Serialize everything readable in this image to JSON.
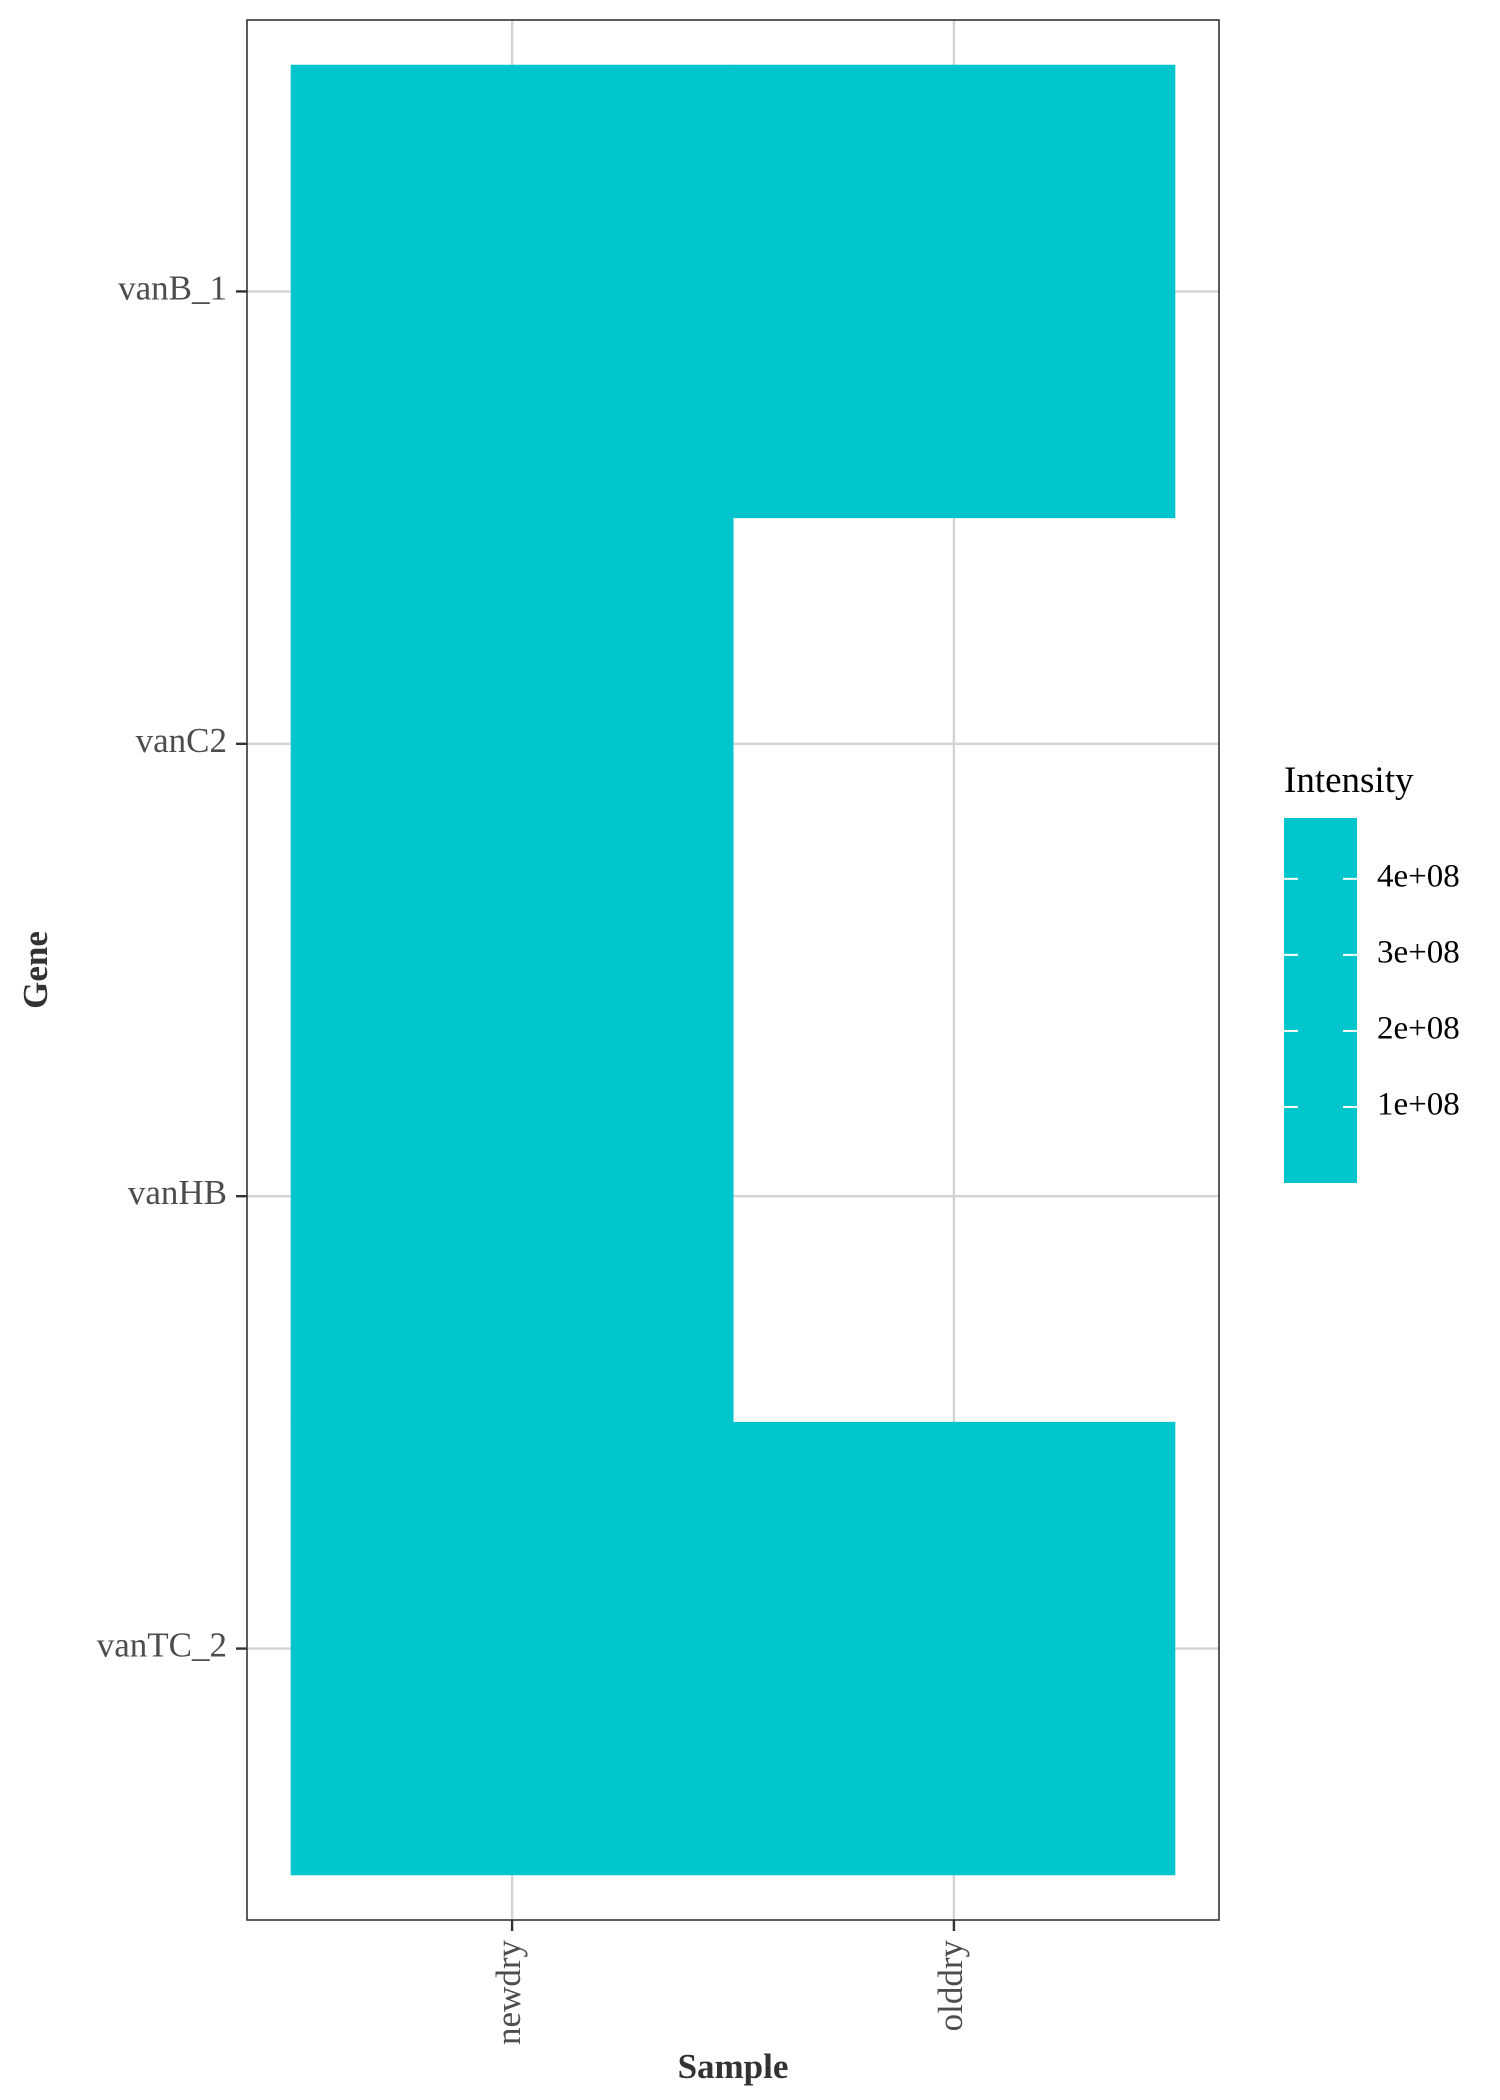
{
  "chart_data": {
    "type": "heatmap",
    "title": "",
    "xlabel": "Sample",
    "ylabel": "Gene",
    "x_categories": [
      "newdry",
      "olddry"
    ],
    "y_categories": [
      "vanB_1",
      "vanC2",
      "vanHB",
      "vanTC_2"
    ],
    "cells": [
      {
        "x": "newdry",
        "y": "vanB_1",
        "value": 450000000
      },
      {
        "x": "olddry",
        "y": "vanB_1",
        "value": 450000000
      },
      {
        "x": "newdry",
        "y": "vanC2",
        "value": 450000000
      },
      {
        "x": "newdry",
        "y": "vanHB",
        "value": 450000000
      },
      {
        "x": "newdry",
        "y": "vanTC_2",
        "value": 450000000
      },
      {
        "x": "olddry",
        "y": "vanTC_2",
        "value": 450000000
      }
    ],
    "legend": {
      "title": "Intensity",
      "position": "right",
      "tick_labels": [
        "4e+08",
        "3e+08",
        "2e+08",
        "1e+08"
      ],
      "tick_values": [
        400000000,
        300000000,
        200000000,
        100000000
      ],
      "range": [
        0,
        480000000
      ]
    },
    "grid": true,
    "colors": {
      "fill": "#00C5CD",
      "grid": "#d3d3d3",
      "border": "#333333"
    }
  }
}
